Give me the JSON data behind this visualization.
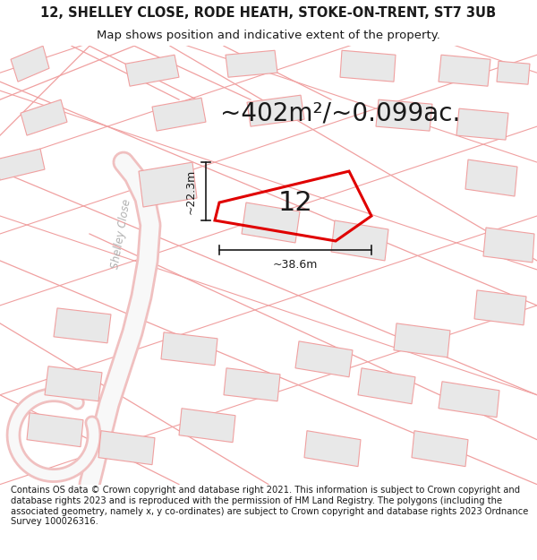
{
  "title_line1": "12, SHELLEY CLOSE, RODE HEATH, STOKE-ON-TRENT, ST7 3UB",
  "title_line2": "Map shows position and indicative extent of the property.",
  "area_text": "~402m²/~0.099ac.",
  "label_number": "12",
  "dim_width": "~38.6m",
  "dim_height": "~22.3m",
  "road_label": "Shelley Close",
  "footer_text": "Contains OS data © Crown copyright and database right 2021. This information is subject to Crown copyright and database rights 2023 and is reproduced with the permission of HM Land Registry. The polygons (including the associated geometry, namely x, y co-ordinates) are subject to Crown copyright and database rights 2023 Ordnance Survey 100026316.",
  "bg_color": "#ffffff",
  "map_bg": "#ffffff",
  "main_plot_color": "#e00000",
  "building_edge": "#f0a0a0",
  "building_fill": "#e8e8e8",
  "road_line_color": "#f0a0a0",
  "road_fill_color": "#f5f5f5",
  "road_bg_color": "#f8f0f0",
  "shelley_road_color": "#e8e8e8",
  "shelley_road_label_color": "#b0b0b0",
  "dim_line_color": "#1a1a1a",
  "text_color": "#1a1a1a",
  "title_fontsize": 10.5,
  "subtitle_fontsize": 9.5,
  "area_fontsize": 20,
  "label_fontsize": 22,
  "footer_fontsize": 7.2,
  "road_label_fontsize": 8.5,
  "dim_fontsize": 9
}
